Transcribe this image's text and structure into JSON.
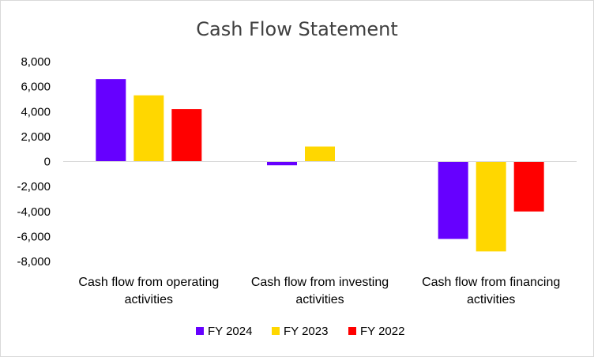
{
  "chart_data": {
    "type": "bar",
    "title": "Cash Flow Statement",
    "categories": [
      [
        "Cash flow from operating",
        "activities"
      ],
      [
        "Cash flow from investing",
        "activities"
      ],
      [
        "Cash flow from financing",
        "activities"
      ]
    ],
    "series": [
      {
        "name": "FY 2024",
        "color": "#6600ff",
        "values": [
          6600,
          -300,
          -6200
        ]
      },
      {
        "name": "FY 2023",
        "color": "#ffd700",
        "values": [
          5300,
          1200,
          -7200
        ]
      },
      {
        "name": "FY 2022",
        "color": "#ff0000",
        "values": [
          4200,
          0,
          -4000
        ]
      }
    ],
    "yticks": [
      "8,000",
      "6,000",
      "4,000",
      "2,000",
      "0",
      "-2,000",
      "-4,000",
      "-6,000",
      "-8,000"
    ],
    "ylim": [
      -8000,
      8000
    ],
    "grid": false,
    "legend_position": "bottom"
  }
}
